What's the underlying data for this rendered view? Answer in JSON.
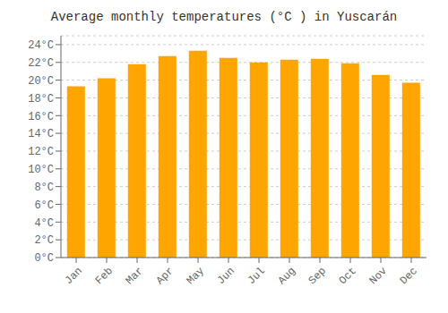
{
  "chart_data": {
    "type": "bar",
    "title": "Average monthly temperatures (°C ) in Yuscarán",
    "categories": [
      "Jan",
      "Feb",
      "Mar",
      "Apr",
      "May",
      "Jun",
      "Jul",
      "Aug",
      "Sep",
      "Oct",
      "Nov",
      "Dec"
    ],
    "values": [
      19.3,
      20.2,
      21.8,
      22.7,
      23.3,
      22.5,
      22.0,
      22.3,
      22.4,
      21.9,
      20.6,
      19.7
    ],
    "color": "#FFA500",
    "ylim": [
      0,
      25
    ],
    "yticks": [
      {
        "value": 0,
        "label": "0°C"
      },
      {
        "value": 2,
        "label": "2°C"
      },
      {
        "value": 4,
        "label": "4°C"
      },
      {
        "value": 6,
        "label": "6°C"
      },
      {
        "value": 8,
        "label": "8°C"
      },
      {
        "value": 10,
        "label": "10°C"
      },
      {
        "value": 12,
        "label": "12°C"
      },
      {
        "value": 14,
        "label": "14°C"
      },
      {
        "value": 16,
        "label": "16°C"
      },
      {
        "value": 18,
        "label": "18°C"
      },
      {
        "value": 20,
        "label": "20°C"
      },
      {
        "value": 22,
        "label": "22°C"
      },
      {
        "value": 24,
        "label": "24°C"
      }
    ],
    "grid": true
  }
}
